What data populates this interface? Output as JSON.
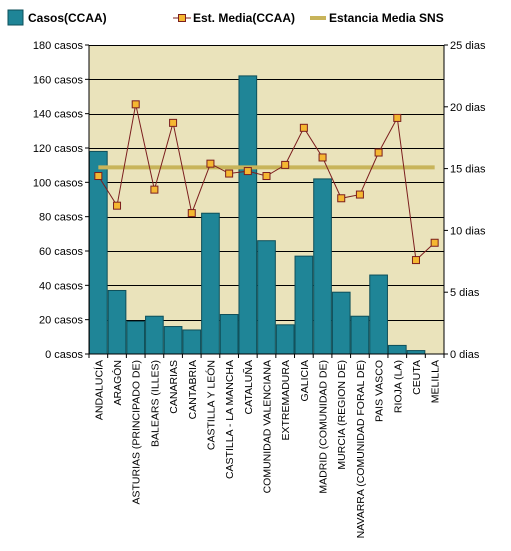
{
  "colors": {
    "plot_bg": "#eae3bb",
    "bar": "#1f8597",
    "bar_edge": "#0e4f5a",
    "line": "#7b1e1e",
    "marker_fill": "#f5b731",
    "marker_edge": "#7b1e1e",
    "sns_line": "#c8b45a",
    "grid": "#000000"
  },
  "legend": {
    "casos": "Casos(CCAA)",
    "est_media": "Est. Media(CCAA)",
    "sns": "Estancia Media SNS"
  },
  "chart_data": {
    "type": "bar",
    "categories": [
      "ANDALUCÍA",
      "ARAGÓN",
      "ASTURIAS (PRINCIPADO DE)",
      "BALEARS (ILLES)",
      "CANARIAS",
      "CANTABRIA",
      "CASTILLA Y LEÓN",
      "CASTILLA - LA MANCHA",
      "CATALUÑA",
      "COMUNIDAD VALENCIANA",
      "EXTREMADURA",
      "GALICIA",
      "MADRID (COMUNIDAD DE)",
      "MURCIA (REGION DE)",
      "NAVARRA (COMUNIDAD FORAL DE)",
      "PAIS VASCO",
      "RIOJA (LA)",
      "CEUTA",
      "MELILLA"
    ],
    "series": [
      {
        "name": "Casos(CCAA)",
        "type": "bar",
        "axis": "left",
        "values": [
          118,
          37,
          19,
          22,
          16,
          14,
          82,
          23,
          162,
          66,
          17,
          57,
          102,
          36,
          22,
          46,
          5,
          2,
          0
        ]
      },
      {
        "name": "Est. Media(CCAA)",
        "type": "line",
        "axis": "right",
        "values": [
          14.4,
          12.0,
          20.2,
          13.3,
          18.7,
          11.4,
          15.4,
          14.6,
          14.8,
          14.4,
          15.3,
          18.3,
          15.9,
          12.6,
          12.9,
          16.3,
          19.1,
          7.6,
          9.0
        ]
      },
      {
        "name": "Estancia Media SNS",
        "type": "line",
        "axis": "right",
        "values": [
          15.1,
          15.1,
          15.1,
          15.1,
          15.1,
          15.1,
          15.1,
          15.1,
          15.1,
          15.1,
          15.1,
          15.1,
          15.1,
          15.1,
          15.1,
          15.1,
          15.1,
          15.1,
          15.1
        ]
      }
    ],
    "y_left": {
      "ylim": [
        0,
        180
      ],
      "ticks": [
        0,
        20,
        40,
        60,
        80,
        100,
        120,
        140,
        160,
        180
      ],
      "tick_labels": [
        "0 casos",
        "20 casos",
        "40 casos",
        "60 casos",
        "80 casos",
        "100 casos",
        "120 casos",
        "140 casos",
        "160 casos",
        "180 casos"
      ]
    },
    "y_right": {
      "ylim": [
        0,
        25
      ],
      "ticks": [
        0,
        5,
        10,
        15,
        20,
        25
      ],
      "tick_labels": [
        "0 dias",
        "5 dias",
        "10 dias",
        "15 dias",
        "20 dias",
        "25 dias"
      ]
    },
    "grid": true,
    "legend_position": "top"
  }
}
